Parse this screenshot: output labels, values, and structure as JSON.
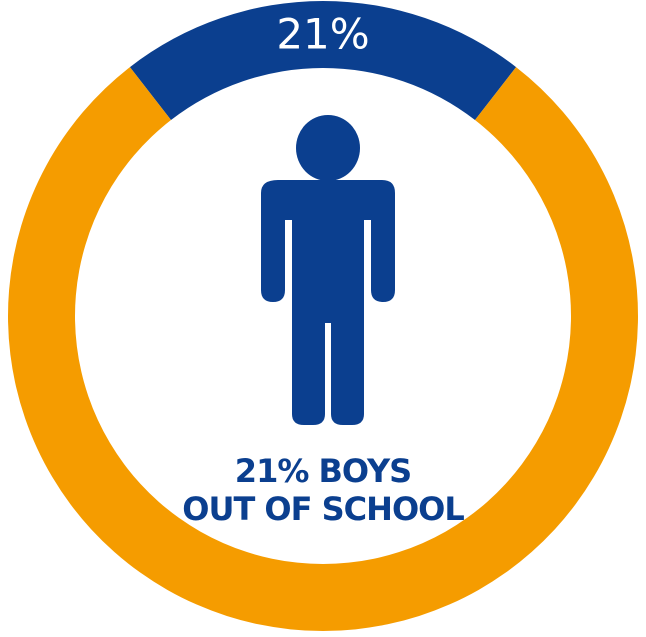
{
  "chart_data": {
    "type": "pie",
    "style": "donut",
    "slices": [
      {
        "value": 21,
        "color": "#0b3f8f",
        "label": "21%"
      },
      {
        "value": 79,
        "color": "#f59c00"
      }
    ],
    "caption": [
      "21% BOYS",
      "OUT OF SCHOOL"
    ]
  },
  "icons": {
    "center": "boy-figure-icon"
  },
  "colors": {
    "primary": "#0b3f8f",
    "accent": "#f59c00",
    "background": "#ffffff"
  }
}
